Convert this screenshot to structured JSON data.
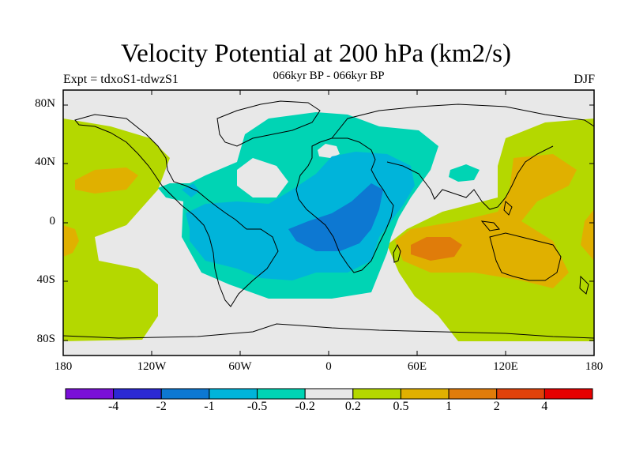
{
  "title": "Velocity Potential at 200 hPa (km2/s)",
  "left_label": "Expt = tdxoS1-tdwzS1",
  "center_label": "066kyr BP - 066kyr BP",
  "right_label": "DJF",
  "lat_ticks": [
    "80N",
    "40N",
    "0",
    "40S",
    "80S"
  ],
  "lon_ticks": [
    "180",
    "120W",
    "60W",
    "0",
    "60E",
    "120E",
    "180"
  ],
  "colorbar": {
    "colors": [
      "#7a0fd8",
      "#2b29d4",
      "#0d78d2",
      "#00b4da",
      "#00d4b4",
      "#e8e8e8",
      "#b4d800",
      "#e0b000",
      "#e07c0a",
      "#e0420a",
      "#e60000"
    ],
    "labels": [
      "-4",
      "-2",
      "-1",
      "-0.5",
      "-0.2",
      "0.2",
      "0.5",
      "1",
      "2",
      "4"
    ]
  },
  "map_colors": {
    "neutral": "#e8e8e8",
    "neg_02": "#00d4b4",
    "neg_05": "#00b4da",
    "neg_1": "#0d78d2",
    "pos_02": "#b4d800",
    "pos_05": "#e0b000",
    "pos_1": "#e07c0a"
  }
}
